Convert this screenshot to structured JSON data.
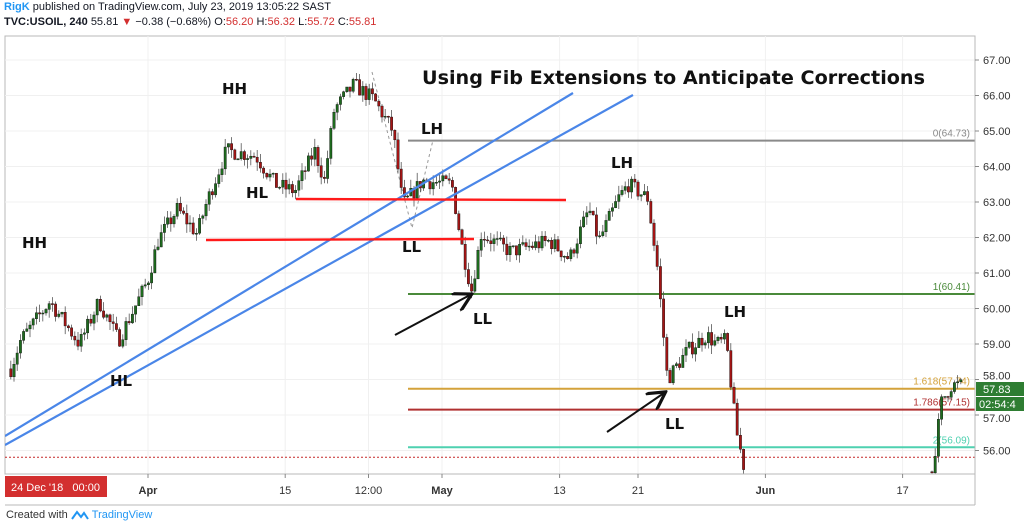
{
  "header": {
    "author": "RigK",
    "published": "published on TradingView.com, July 23, 2019 13:05:22 SAST",
    "symbol": "TVC:USOIL, 240",
    "last": "55.81",
    "change": "−0.38 (−0.68%)",
    "open_label": "O:",
    "open": "56.20",
    "high_label": "H:",
    "high": "56.32",
    "low_label": "L:",
    "low": "55.72",
    "close_label": "C:",
    "close": "55.81"
  },
  "footer": {
    "created_with": "Created with",
    "brand": "TradingView"
  },
  "colors": {
    "up": "#1e6b1e",
    "down": "#a31515",
    "trendline": "#4a86e8",
    "level_line": "#ff1a1a",
    "price_tag": "#2e7d32",
    "crosshair_tag": "#d32f2f"
  },
  "chart_data": {
    "type": "candlestick",
    "title": "Using Fib Extensions to Anticipate Corrections",
    "ylim": [
      55.3,
      67.4
    ],
    "xlim": [
      "2019-03-17",
      "2019-06-24"
    ],
    "grid": true,
    "price_ticks": [
      "67.00",
      "66.00",
      "65.00",
      "64.00",
      "63.00",
      "62.00",
      "61.00",
      "60.00",
      "59.00",
      "58.00",
      "57.00",
      "56.00"
    ],
    "time_ticks": [
      {
        "label": "Apr",
        "date": "2019-04-01"
      },
      {
        "label": "15",
        "date": "2019-04-15"
      },
      {
        "label": "12:00",
        "date": "2019-04-23T12:00"
      },
      {
        "label": "May",
        "date": "2019-05-01"
      },
      {
        "label": "13",
        "date": "2019-05-13"
      },
      {
        "label": "21",
        "date": "2019-05-21"
      },
      {
        "label": "Jun",
        "date": "2019-06-03"
      },
      {
        "label": "17",
        "date": "2019-06-17"
      }
    ],
    "crosshair_time_label": "24 Dec '18   00:00",
    "current_price": "57.83",
    "countdown": "02:54:4",
    "last_close_line": 55.81,
    "price_path_segments": [
      [
        [
          "2019-03-18",
          58.3
        ],
        [
          "2019-03-19",
          59.1
        ],
        [
          "2019-03-22",
          60.2
        ],
        [
          "2019-03-25",
          59.0
        ],
        [
          "2019-03-27",
          60.2
        ],
        [
          "2019-03-29",
          59.1
        ],
        [
          "2019-04-01",
          60.8
        ],
        [
          "2019-04-02",
          61.9
        ],
        [
          "2019-04-04",
          62.8
        ],
        [
          "2019-04-06",
          62.1
        ],
        [
          "2019-04-07",
          63.0
        ],
        [
          "2019-04-09",
          64.45
        ],
        [
          "2019-04-12",
          64.3
        ],
        [
          "2019-04-14",
          63.5
        ],
        [
          "2019-04-16",
          63.3
        ],
        [
          "2019-04-18",
          64.45
        ],
        [
          "2019-04-19",
          63.6
        ],
        [
          "2019-04-20",
          65.6
        ],
        [
          "2019-04-22",
          66.3
        ],
        [
          "2019-04-24",
          65.9
        ],
        [
          "2019-04-26",
          65.0
        ],
        [
          "2019-04-27",
          62.9
        ],
        [
          "2019-04-29",
          63.6
        ],
        [
          "2019-05-02",
          63.5
        ],
        [
          "2019-05-03",
          61.8
        ],
        [
          "2019-05-04",
          60.5
        ],
        [
          "2019-05-05",
          62.1
        ],
        [
          "2019-05-08",
          61.6
        ],
        [
          "2019-05-12",
          61.9
        ],
        [
          "2019-05-14",
          61.4
        ],
        [
          "2019-05-16",
          62.8
        ],
        [
          "2019-05-17",
          61.9
        ],
        [
          "2019-05-19",
          63.1
        ],
        [
          "2019-05-20",
          63.5
        ],
        [
          "2019-05-22",
          63.1
        ],
        [
          "2019-05-23",
          61.1
        ],
        [
          "2019-05-24",
          58.0
        ],
        [
          "2019-05-26",
          58.8
        ],
        [
          "2019-05-28",
          59.25
        ],
        [
          "2019-05-29",
          59.0
        ],
        [
          "2019-05-30",
          59.1
        ],
        [
          "2019-05-31",
          56.6
        ],
        [
          "2019-06-01",
          55.3
        ]
      ],
      [
        [
          "2019-06-20",
          55.4
        ],
        [
          "2019-06-21",
          57.4
        ],
        [
          "2019-06-22",
          57.85
        ],
        [
          "2019-06-23",
          57.83
        ]
      ]
    ],
    "fib_levels": [
      {
        "label": "0(64.73)",
        "value": 64.73,
        "color": "#8a8a8a"
      },
      {
        "label": "1(60.41)",
        "value": 60.41,
        "color": "#4a8a3a"
      },
      {
        "label": "1.618(57.74)",
        "value": 57.74,
        "color": "#d4a23a"
      },
      {
        "label": "1.786(57.15)",
        "value": 57.15,
        "color": "#b03030"
      },
      {
        "label": "2(56.09)",
        "value": 56.09,
        "color": "#4fd1b0"
      }
    ],
    "horizontal_levels": [
      63.05,
      61.9
    ],
    "annotations": [
      "HH",
      "HH",
      "HL",
      "HL",
      "LH",
      "LL",
      "LH",
      "LL",
      "LH",
      "LL"
    ]
  }
}
